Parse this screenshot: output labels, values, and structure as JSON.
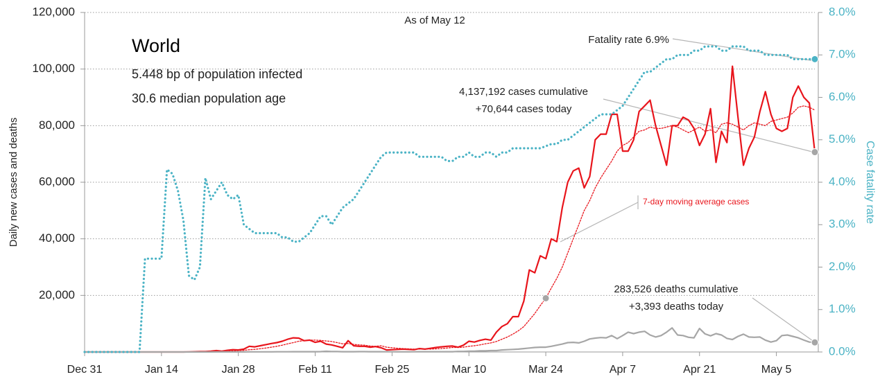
{
  "chart_data": {
    "type": "line",
    "annotations": [
      "As of May 12",
      "World",
      "5.448 bp of population infected",
      "30.6 median population age",
      "Fatality rate 6.9%",
      "4,137,192 cases cumulative",
      "+70,644 cases today",
      "7-day moving average cases",
      "283,526 deaths cumulative",
      "+3,393 deaths today"
    ],
    "ylabel": "Daily new cases and deaths",
    "y2label": "Case fatality rate",
    "categories": [
      "Dec 31",
      "Jan 1",
      "Jan 2",
      "Jan 3",
      "Jan 4",
      "Jan 5",
      "Jan 6",
      "Jan 7",
      "Jan 8",
      "Jan 9",
      "Jan 10",
      "Jan 11",
      "Jan 12",
      "Jan 13",
      "Jan 14",
      "Jan 15",
      "Jan 16",
      "Jan 17",
      "Jan 18",
      "Jan 19",
      "Jan 20",
      "Jan 21",
      "Jan 22",
      "Jan 23",
      "Jan 24",
      "Jan 25",
      "Jan 26",
      "Jan 27",
      "Jan 28",
      "Jan 29",
      "Jan 30",
      "Jan 31",
      "Feb 1",
      "Feb 2",
      "Feb 3",
      "Feb 4",
      "Feb 5",
      "Feb 6",
      "Feb 7",
      "Feb 8",
      "Feb 9",
      "Feb 10",
      "Feb 11",
      "Feb 12",
      "Feb 13",
      "Feb 14",
      "Feb 15",
      "Feb 16",
      "Feb 17",
      "Feb 18",
      "Feb 19",
      "Feb 20",
      "Feb 21",
      "Feb 22",
      "Feb 23",
      "Feb 24",
      "Feb 25",
      "Feb 26",
      "Feb 27",
      "Feb 28",
      "Feb 29",
      "Mar 1",
      "Mar 2",
      "Mar 3",
      "Mar 4",
      "Mar 5",
      "Mar 6",
      "Mar 7",
      "Mar 8",
      "Mar 9",
      "Mar 10",
      "Mar 11",
      "Mar 12",
      "Mar 13",
      "Mar 14",
      "Mar 15",
      "Mar 16",
      "Mar 17",
      "Mar 18",
      "Mar 19",
      "Mar 20",
      "Mar 21",
      "Mar 22",
      "Mar 23",
      "Mar 24",
      "Mar 25",
      "Mar 26",
      "Mar 27",
      "Mar 28",
      "Mar 29",
      "Mar 30",
      "Mar 31",
      "Apr 1",
      "Apr 2",
      "Apr 3",
      "Apr 4",
      "Apr 5",
      "Apr 6",
      "Apr 7",
      "Apr 8",
      "Apr 9",
      "Apr 10",
      "Apr 11",
      "Apr 12",
      "Apr 13",
      "Apr 14",
      "Apr 15",
      "Apr 16",
      "Apr 17",
      "Apr 18",
      "Apr 19",
      "Apr 20",
      "Apr 21",
      "Apr 22",
      "Apr 23",
      "Apr 24",
      "Apr 25",
      "Apr 26",
      "Apr 27",
      "Apr 28",
      "Apr 29",
      "Apr 30",
      "May 1",
      "May 2",
      "May 3",
      "May 4",
      "May 5",
      "May 6",
      "May 7",
      "May 8",
      "May 9",
      "May 10",
      "May 11",
      "May 12"
    ],
    "xticks": [
      "Dec 31",
      "Jan 14",
      "Jan 28",
      "Feb 11",
      "Feb 25",
      "Mar 10",
      "Mar 24",
      "Apr 7",
      "Apr 21",
      "May 5"
    ],
    "ylim": [
      0,
      120000
    ],
    "yticks": [
      {
        "value": 20000,
        "label": "20,000"
      },
      {
        "value": 40000,
        "label": "40,000"
      },
      {
        "value": 60000,
        "label": "60,000"
      },
      {
        "value": 80000,
        "label": "80,000"
      },
      {
        "value": 100000,
        "label": "100,000"
      },
      {
        "value": 120000,
        "label": "120,000"
      }
    ],
    "y2lim": [
      0,
      8
    ],
    "y2ticks": [
      {
        "value": 0,
        "label": "0.0%"
      },
      {
        "value": 1,
        "label": "1.0%"
      },
      {
        "value": 2,
        "label": "2.0%"
      },
      {
        "value": 3,
        "label": "3.0%"
      },
      {
        "value": 4,
        "label": "4.0%"
      },
      {
        "value": 5,
        "label": "5.0%"
      },
      {
        "value": 6,
        "label": "6.0%"
      },
      {
        "value": 7,
        "label": "7.0%"
      },
      {
        "value": 8,
        "label": "8.0%"
      }
    ],
    "grid": true,
    "series": [
      {
        "name": "7-day moving average cases",
        "color": "#e8141b",
        "style": "dotted",
        "values": [
          0,
          0,
          0,
          0,
          0,
          0,
          0,
          0,
          0,
          0,
          0,
          0,
          0,
          0,
          0,
          0,
          0,
          0,
          0,
          0,
          20,
          40,
          60,
          100,
          170,
          210,
          300,
          400,
          480,
          590,
          810,
          940,
          1150,
          1400,
          1700,
          2000,
          2400,
          2900,
          3300,
          3800,
          4000,
          4200,
          4200,
          4100,
          3900,
          3700,
          3300,
          2900,
          3000,
          2700,
          2500,
          2400,
          2100,
          2000,
          2200,
          1700,
          1500,
          1300,
          1200,
          1100,
          1000,
          1000,
          1000,
          1000,
          1100,
          1200,
          1400,
          1600,
          1600,
          1700,
          2000,
          2200,
          2500,
          2900,
          3200,
          3700,
          4500,
          5300,
          6300,
          7500,
          9000,
          11300,
          13600,
          16400,
          19000,
          22600,
          26000,
          30000,
          35000,
          40000,
          45000,
          50000,
          53500,
          58000,
          61500,
          64500,
          67500,
          71000,
          73000,
          74000,
          76000,
          78000,
          78500,
          79500,
          79000,
          79000,
          79500,
          80000,
          79500,
          78500,
          77500,
          78500,
          79500,
          78000,
          78500,
          77500,
          80500,
          81000,
          80500,
          79500,
          78500,
          80000,
          81000,
          80500,
          80000,
          81500,
          82000,
          82500,
          83000,
          84500,
          86500,
          87000,
          86500,
          85500
        ]
      },
      {
        "name": "Daily new cases",
        "color": "#e8141b",
        "style": "solid",
        "values": [
          0,
          0,
          0,
          0,
          0,
          0,
          0,
          0,
          0,
          0,
          0,
          0,
          0,
          0,
          0,
          0,
          0,
          0,
          0,
          50,
          100,
          150,
          150,
          300,
          500,
          300,
          600,
          800,
          700,
          1000,
          2000,
          1800,
          2200,
          2600,
          3000,
          3300,
          3800,
          4500,
          5000,
          4900,
          4000,
          4200,
          3400,
          3800,
          2800,
          2500,
          2000,
          1500,
          4000,
          2200,
          2000,
          2000,
          1700,
          1900,
          1500,
          700,
          800,
          900,
          1000,
          900,
          800,
          1200,
          1000,
          1300,
          1600,
          1800,
          2000,
          2100,
          1700,
          2400,
          3800,
          3500,
          4100,
          4500,
          4200,
          7000,
          9000,
          10000,
          12500,
          12500,
          18000,
          29000,
          28000,
          34000,
          33000,
          40000,
          39000,
          51000,
          60000,
          64000,
          65000,
          58000,
          62000,
          75000,
          77000,
          77000,
          84000,
          84000,
          71000,
          71000,
          75000,
          85000,
          87000,
          89000,
          80000,
          73000,
          66000,
          80000,
          80000,
          83000,
          82000,
          79000,
          73000,
          77000,
          86000,
          67000,
          78000,
          74000,
          101000,
          83000,
          66000,
          72000,
          76000,
          85000,
          92000,
          84000,
          79000,
          78000,
          79000,
          90000,
          94000,
          90000,
          88000,
          70644
        ]
      },
      {
        "name": "Daily new deaths",
        "color": "#a6a6a6",
        "style": "solid",
        "values": [
          0,
          0,
          0,
          0,
          0,
          0,
          0,
          0,
          0,
          0,
          0,
          0,
          0,
          0,
          0,
          0,
          0,
          0,
          0,
          0,
          0,
          0,
          10,
          10,
          20,
          20,
          30,
          30,
          40,
          30,
          40,
          40,
          50,
          60,
          60,
          70,
          70,
          80,
          90,
          90,
          100,
          110,
          100,
          120,
          250,
          140,
          140,
          110,
          100,
          100,
          120,
          120,
          100,
          100,
          100,
          80,
          70,
          60,
          60,
          60,
          70,
          100,
          100,
          100,
          100,
          100,
          100,
          100,
          200,
          200,
          300,
          300,
          400,
          400,
          500,
          500,
          700,
          800,
          900,
          1000,
          1200,
          1400,
          1600,
          1700,
          1700,
          2000,
          2400,
          2800,
          3300,
          3400,
          3200,
          3800,
          4600,
          4900,
          5100,
          5000,
          5800,
          4700,
          5800,
          7000,
          6500,
          7000,
          7300,
          6000,
          5300,
          5800,
          7000,
          8500,
          6000,
          5800,
          5200,
          5000,
          8300,
          6400,
          5700,
          6500,
          6000,
          4800,
          4400,
          5500,
          6300,
          5300,
          5200,
          5300,
          4200,
          3500,
          4000,
          5800,
          6000,
          5500,
          5000,
          4200,
          3500,
          3393
        ]
      },
      {
        "name": "Case fatality rate",
        "color": "#4bb3c5",
        "style": "dotted",
        "axis": "y2",
        "values": [
          0,
          0,
          0,
          0,
          0,
          0,
          0,
          0,
          0,
          0,
          0,
          2.2,
          2.2,
          2.2,
          2.2,
          4.3,
          4.2,
          3.8,
          3.1,
          1.8,
          1.7,
          2.0,
          4.1,
          3.6,
          3.8,
          4.0,
          3.7,
          3.6,
          3.7,
          3.0,
          2.9,
          2.8,
          2.8,
          2.8,
          2.8,
          2.8,
          2.7,
          2.7,
          2.6,
          2.6,
          2.7,
          2.8,
          3.0,
          3.2,
          3.2,
          3.0,
          3.2,
          3.4,
          3.5,
          3.6,
          3.8,
          4.0,
          4.2,
          4.4,
          4.6,
          4.7,
          4.7,
          4.7,
          4.7,
          4.7,
          4.7,
          4.6,
          4.6,
          4.6,
          4.6,
          4.6,
          4.5,
          4.5,
          4.6,
          4.6,
          4.7,
          4.6,
          4.6,
          4.7,
          4.7,
          4.6,
          4.7,
          4.7,
          4.8,
          4.8,
          4.8,
          4.8,
          4.8,
          4.8,
          4.85,
          4.9,
          4.9,
          5.0,
          5.0,
          5.1,
          5.2,
          5.3,
          5.4,
          5.5,
          5.6,
          5.6,
          5.6,
          5.7,
          5.8,
          6.0,
          6.2,
          6.4,
          6.6,
          6.6,
          6.7,
          6.8,
          6.9,
          6.9,
          7.0,
          7.0,
          7.0,
          7.1,
          7.1,
          7.2,
          7.2,
          7.2,
          7.1,
          7.1,
          7.2,
          7.2,
          7.2,
          7.1,
          7.1,
          7.1,
          7.0,
          7.0,
          7.0,
          7.0,
          7.0,
          6.9,
          6.9,
          6.9,
          6.9,
          6.9
        ]
      }
    ]
  }
}
